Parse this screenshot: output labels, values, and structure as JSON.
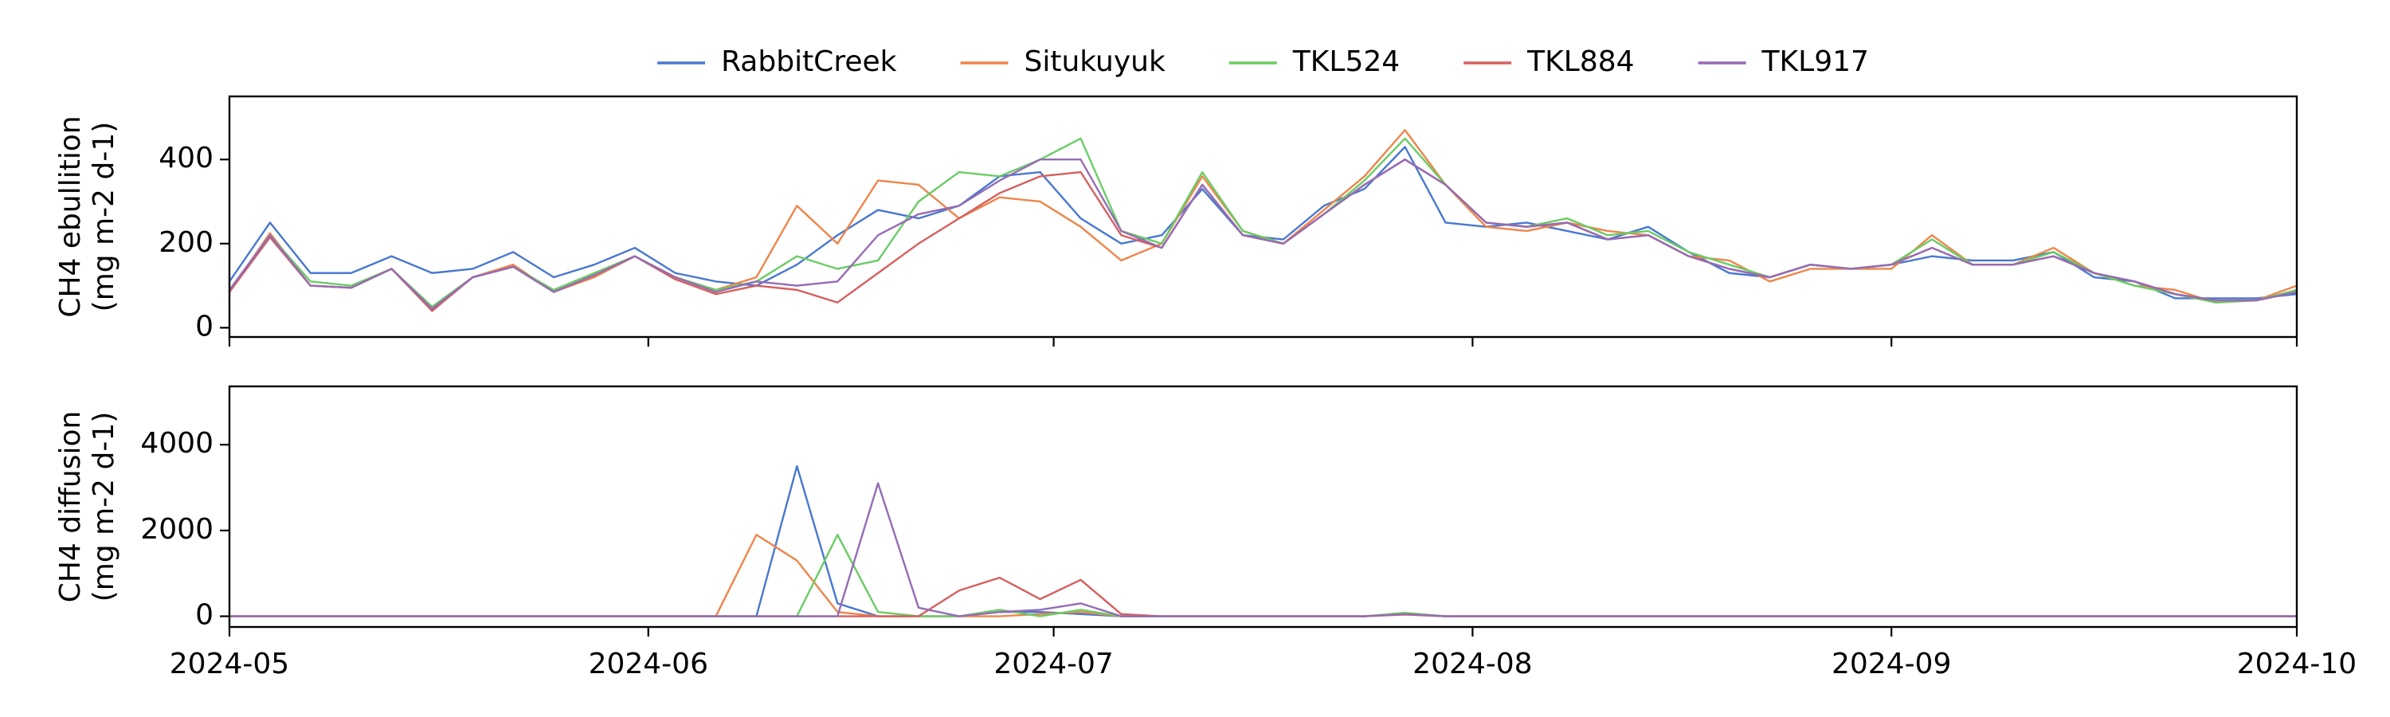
{
  "chart_data": [
    {
      "type": "line",
      "ylabel": [
        "CH4 ebullition",
        "(mg m-2 d-1)"
      ],
      "x": [
        "2024-05-01",
        "2024-05-04",
        "2024-05-07",
        "2024-05-10",
        "2024-05-13",
        "2024-05-16",
        "2024-05-19",
        "2024-05-22",
        "2024-05-25",
        "2024-05-28",
        "2024-05-31",
        "2024-06-03",
        "2024-06-06",
        "2024-06-09",
        "2024-06-12",
        "2024-06-15",
        "2024-06-18",
        "2024-06-21",
        "2024-06-24",
        "2024-06-27",
        "2024-06-30",
        "2024-07-03",
        "2024-07-06",
        "2024-07-09",
        "2024-07-12",
        "2024-07-15",
        "2024-07-18",
        "2024-07-21",
        "2024-07-24",
        "2024-07-27",
        "2024-07-30",
        "2024-08-02",
        "2024-08-05",
        "2024-08-08",
        "2024-08-11",
        "2024-08-14",
        "2024-08-17",
        "2024-08-20",
        "2024-08-23",
        "2024-08-26",
        "2024-08-29",
        "2024-09-01",
        "2024-09-04",
        "2024-09-07",
        "2024-09-10",
        "2024-09-13",
        "2024-09-16",
        "2024-09-19",
        "2024-09-22",
        "2024-09-25",
        "2024-09-28",
        "2024-10-01"
      ],
      "xlim": [
        "2024-05",
        "2024-10"
      ],
      "xticks": [
        "2024-05",
        "2024-06",
        "2024-07",
        "2024-08",
        "2024-09",
        "2024-10"
      ],
      "ylim": [
        -22,
        550
      ],
      "yticks": [
        0,
        200,
        400
      ],
      "series": [
        {
          "name": "RabbitCreek",
          "color": "#4878d0",
          "values": [
            110,
            250,
            130,
            130,
            170,
            130,
            140,
            180,
            120,
            150,
            190,
            130,
            110,
            100,
            150,
            220,
            280,
            260,
            290,
            360,
            370,
            260,
            200,
            220,
            330,
            220,
            210,
            290,
            330,
            430,
            250,
            240,
            250,
            230,
            210,
            240,
            180,
            130,
            120,
            150,
            140,
            150,
            170,
            160,
            160,
            180,
            120,
            110,
            70,
            70,
            70,
            80
          ]
        },
        {
          "name": "Situkuyuk",
          "color": "#ee854a",
          "values": [
            85,
            225,
            100,
            95,
            140,
            45,
            120,
            150,
            85,
            120,
            170,
            120,
            90,
            120,
            290,
            200,
            350,
            340,
            260,
            310,
            300,
            240,
            160,
            200,
            360,
            230,
            200,
            280,
            360,
            470,
            340,
            240,
            230,
            250,
            230,
            220,
            170,
            160,
            110,
            140,
            140,
            140,
            220,
            150,
            150,
            190,
            130,
            100,
            90,
            60,
            65,
            100
          ]
        },
        {
          "name": "TKL524",
          "color": "#6acc64",
          "values": [
            90,
            220,
            110,
            100,
            140,
            50,
            120,
            145,
            90,
            130,
            170,
            120,
            90,
            110,
            170,
            140,
            160,
            300,
            370,
            360,
            400,
            450,
            230,
            200,
            370,
            230,
            200,
            270,
            350,
            450,
            340,
            250,
            240,
            260,
            220,
            230,
            180,
            150,
            120,
            150,
            140,
            150,
            210,
            150,
            150,
            180,
            130,
            100,
            80,
            60,
            65,
            90
          ]
        },
        {
          "name": "TKL884",
          "color": "#d65f5f",
          "values": [
            85,
            215,
            100,
            95,
            140,
            40,
            120,
            145,
            85,
            125,
            170,
            115,
            80,
            100,
            90,
            60,
            130,
            200,
            260,
            320,
            360,
            370,
            220,
            190,
            340,
            220,
            200,
            270,
            340,
            400,
            340,
            250,
            240,
            250,
            210,
            220,
            170,
            140,
            120,
            150,
            140,
            150,
            190,
            150,
            150,
            170,
            130,
            110,
            80,
            65,
            65,
            85
          ]
        },
        {
          "name": "TKL917",
          "color": "#956cb4",
          "values": [
            90,
            220,
            100,
            95,
            140,
            45,
            120,
            145,
            85,
            125,
            170,
            120,
            85,
            110,
            100,
            110,
            220,
            270,
            290,
            350,
            400,
            400,
            230,
            190,
            340,
            220,
            200,
            270,
            340,
            400,
            340,
            250,
            240,
            250,
            210,
            220,
            170,
            140,
            120,
            150,
            140,
            150,
            190,
            150,
            150,
            170,
            130,
            110,
            80,
            65,
            65,
            85
          ]
        }
      ]
    },
    {
      "type": "line",
      "ylabel": [
        "CH4 diffusion",
        "(mg m-2 d-1)"
      ],
      "x": [
        "2024-05-01",
        "2024-05-04",
        "2024-05-07",
        "2024-05-10",
        "2024-05-13",
        "2024-05-16",
        "2024-05-19",
        "2024-05-22",
        "2024-05-25",
        "2024-05-28",
        "2024-05-31",
        "2024-06-03",
        "2024-06-06",
        "2024-06-09",
        "2024-06-12",
        "2024-06-15",
        "2024-06-18",
        "2024-06-21",
        "2024-06-24",
        "2024-06-27",
        "2024-06-30",
        "2024-07-03",
        "2024-07-06",
        "2024-07-09",
        "2024-07-12",
        "2024-07-15",
        "2024-07-18",
        "2024-07-21",
        "2024-07-24",
        "2024-07-27",
        "2024-07-30",
        "2024-08-02",
        "2024-08-05",
        "2024-08-08",
        "2024-08-11",
        "2024-08-14",
        "2024-08-17",
        "2024-08-20",
        "2024-08-23",
        "2024-08-26",
        "2024-08-29",
        "2024-09-01",
        "2024-09-04",
        "2024-09-07",
        "2024-09-10",
        "2024-09-13",
        "2024-09-16",
        "2024-09-19",
        "2024-09-22",
        "2024-09-25",
        "2024-09-28",
        "2024-10-01"
      ],
      "xlim": [
        "2024-05",
        "2024-10"
      ],
      "xticks": [
        "2024-05",
        "2024-06",
        "2024-07",
        "2024-08",
        "2024-09",
        "2024-10"
      ],
      "ylim": [
        -250,
        5360
      ],
      "yticks": [
        0,
        2000,
        4000
      ],
      "series": [
        {
          "color": "#4878d0",
          "values": [
            0,
            0,
            0,
            0,
            0,
            0,
            0,
            0,
            0,
            0,
            0,
            0,
            0,
            0,
            3500,
            300,
            0,
            0,
            0,
            100,
            100,
            50,
            0,
            0,
            0,
            0,
            0,
            0,
            0,
            60,
            0,
            0,
            0,
            0,
            0,
            0,
            0,
            0,
            0,
            0,
            0,
            0,
            0,
            0,
            0,
            0,
            0,
            0,
            0,
            0,
            0,
            0
          ]
        },
        {
          "color": "#ee854a",
          "values": [
            0,
            0,
            0,
            0,
            0,
            0,
            0,
            0,
            0,
            0,
            0,
            0,
            0,
            1900,
            1300,
            100,
            0,
            0,
            0,
            0,
            50,
            100,
            0,
            0,
            0,
            0,
            0,
            0,
            0,
            50,
            0,
            0,
            0,
            0,
            0,
            0,
            0,
            0,
            0,
            0,
            0,
            0,
            0,
            0,
            0,
            0,
            0,
            0,
            0,
            0,
            0,
            0
          ]
        },
        {
          "color": "#6acc64",
          "values": [
            0,
            0,
            0,
            0,
            0,
            0,
            0,
            0,
            0,
            0,
            0,
            0,
            0,
            0,
            0,
            1900,
            100,
            0,
            0,
            150,
            0,
            150,
            0,
            0,
            0,
            0,
            0,
            0,
            0,
            80,
            0,
            0,
            0,
            0,
            0,
            0,
            0,
            0,
            0,
            0,
            0,
            0,
            0,
            0,
            0,
            0,
            0,
            0,
            0,
            0,
            0,
            0
          ]
        },
        {
          "color": "#d65f5f",
          "values": [
            0,
            0,
            0,
            0,
            0,
            0,
            0,
            0,
            0,
            0,
            0,
            0,
            0,
            0,
            0,
            0,
            0,
            0,
            600,
            900,
            400,
            850,
            50,
            0,
            0,
            0,
            0,
            0,
            0,
            40,
            0,
            0,
            0,
            0,
            0,
            0,
            0,
            0,
            0,
            0,
            0,
            0,
            0,
            0,
            0,
            0,
            0,
            0,
            0,
            0,
            0,
            0
          ]
        },
        {
          "color": "#956cb4",
          "values": [
            0,
            0,
            0,
            0,
            0,
            0,
            0,
            0,
            0,
            0,
            0,
            0,
            0,
            0,
            0,
            0,
            3100,
            200,
            0,
            100,
            150,
            300,
            0,
            0,
            0,
            0,
            0,
            0,
            0,
            50,
            0,
            0,
            0,
            0,
            0,
            0,
            0,
            0,
            0,
            0,
            0,
            0,
            0,
            0,
            0,
            0,
            0,
            0,
            0,
            0,
            0,
            0
          ]
        }
      ]
    }
  ]
}
